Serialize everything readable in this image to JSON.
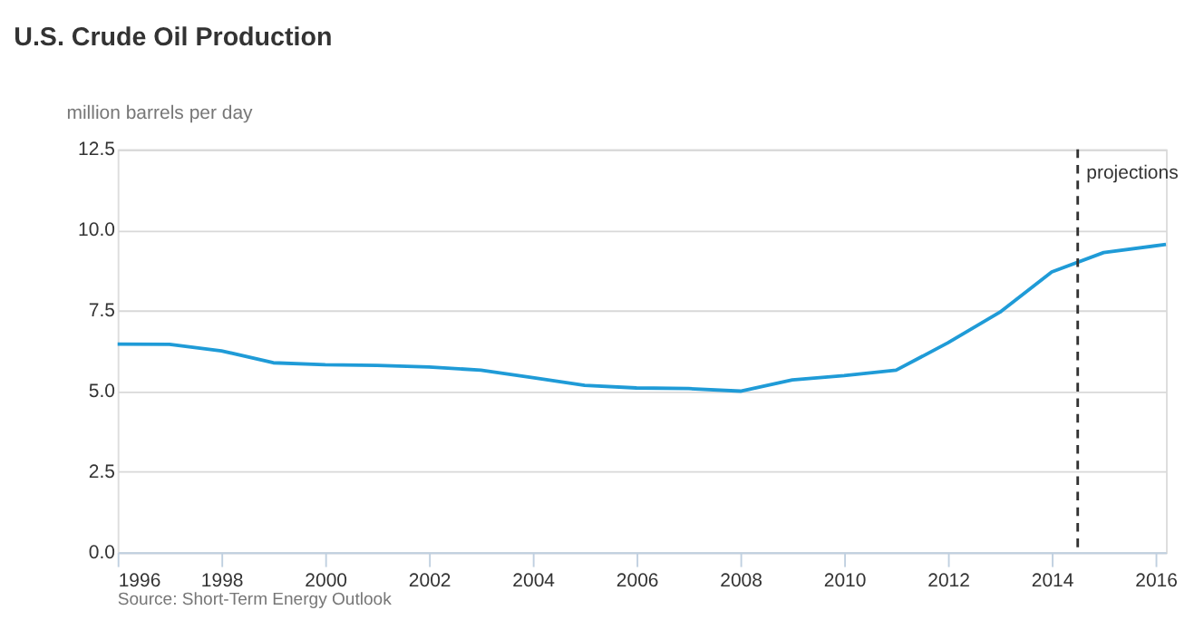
{
  "chart_data": {
    "type": "line",
    "title": "U.S. Crude Oil Production",
    "ylabel": "million barrels per day",
    "x": [
      1996,
      1997,
      1998,
      1999,
      2000,
      2001,
      2002,
      2003,
      2004,
      2005,
      2006,
      2007,
      2008,
      2009,
      2010,
      2011,
      2012,
      2013,
      2014,
      2015,
      2016.2
    ],
    "series": [
      {
        "color": "#1f9bd7",
        "values": [
          6.46,
          6.45,
          6.25,
          5.88,
          5.82,
          5.8,
          5.75,
          5.65,
          5.42,
          5.18,
          5.1,
          5.08,
          5.0,
          5.35,
          5.48,
          5.65,
          6.5,
          7.45,
          8.7,
          9.3,
          9.55
        ]
      }
    ],
    "xlim": [
      1996,
      2016.2
    ],
    "xticks": [
      1996,
      1998,
      2000,
      2002,
      2004,
      2006,
      2008,
      2010,
      2012,
      2014,
      2016
    ],
    "ylim": [
      0,
      12.5
    ],
    "yticks": [
      {
        "value": 0,
        "label": "0.0"
      },
      {
        "value": 2.5,
        "label": "2.5"
      },
      {
        "value": 5,
        "label": "5.0"
      },
      {
        "value": 7.5,
        "label": "7.5"
      },
      {
        "value": 10,
        "label": "10.0"
      },
      {
        "value": 12.5,
        "label": "12.5"
      }
    ],
    "grid": "y",
    "marker": "none",
    "line_style": "solid",
    "ref_lines": [
      {
        "axis": "x",
        "value": 2014.5,
        "label": "projections",
        "color": "#333333",
        "line_style": "dashed"
      }
    ],
    "annotations": [
      "Source: Short-Term Energy Outlook"
    ]
  }
}
